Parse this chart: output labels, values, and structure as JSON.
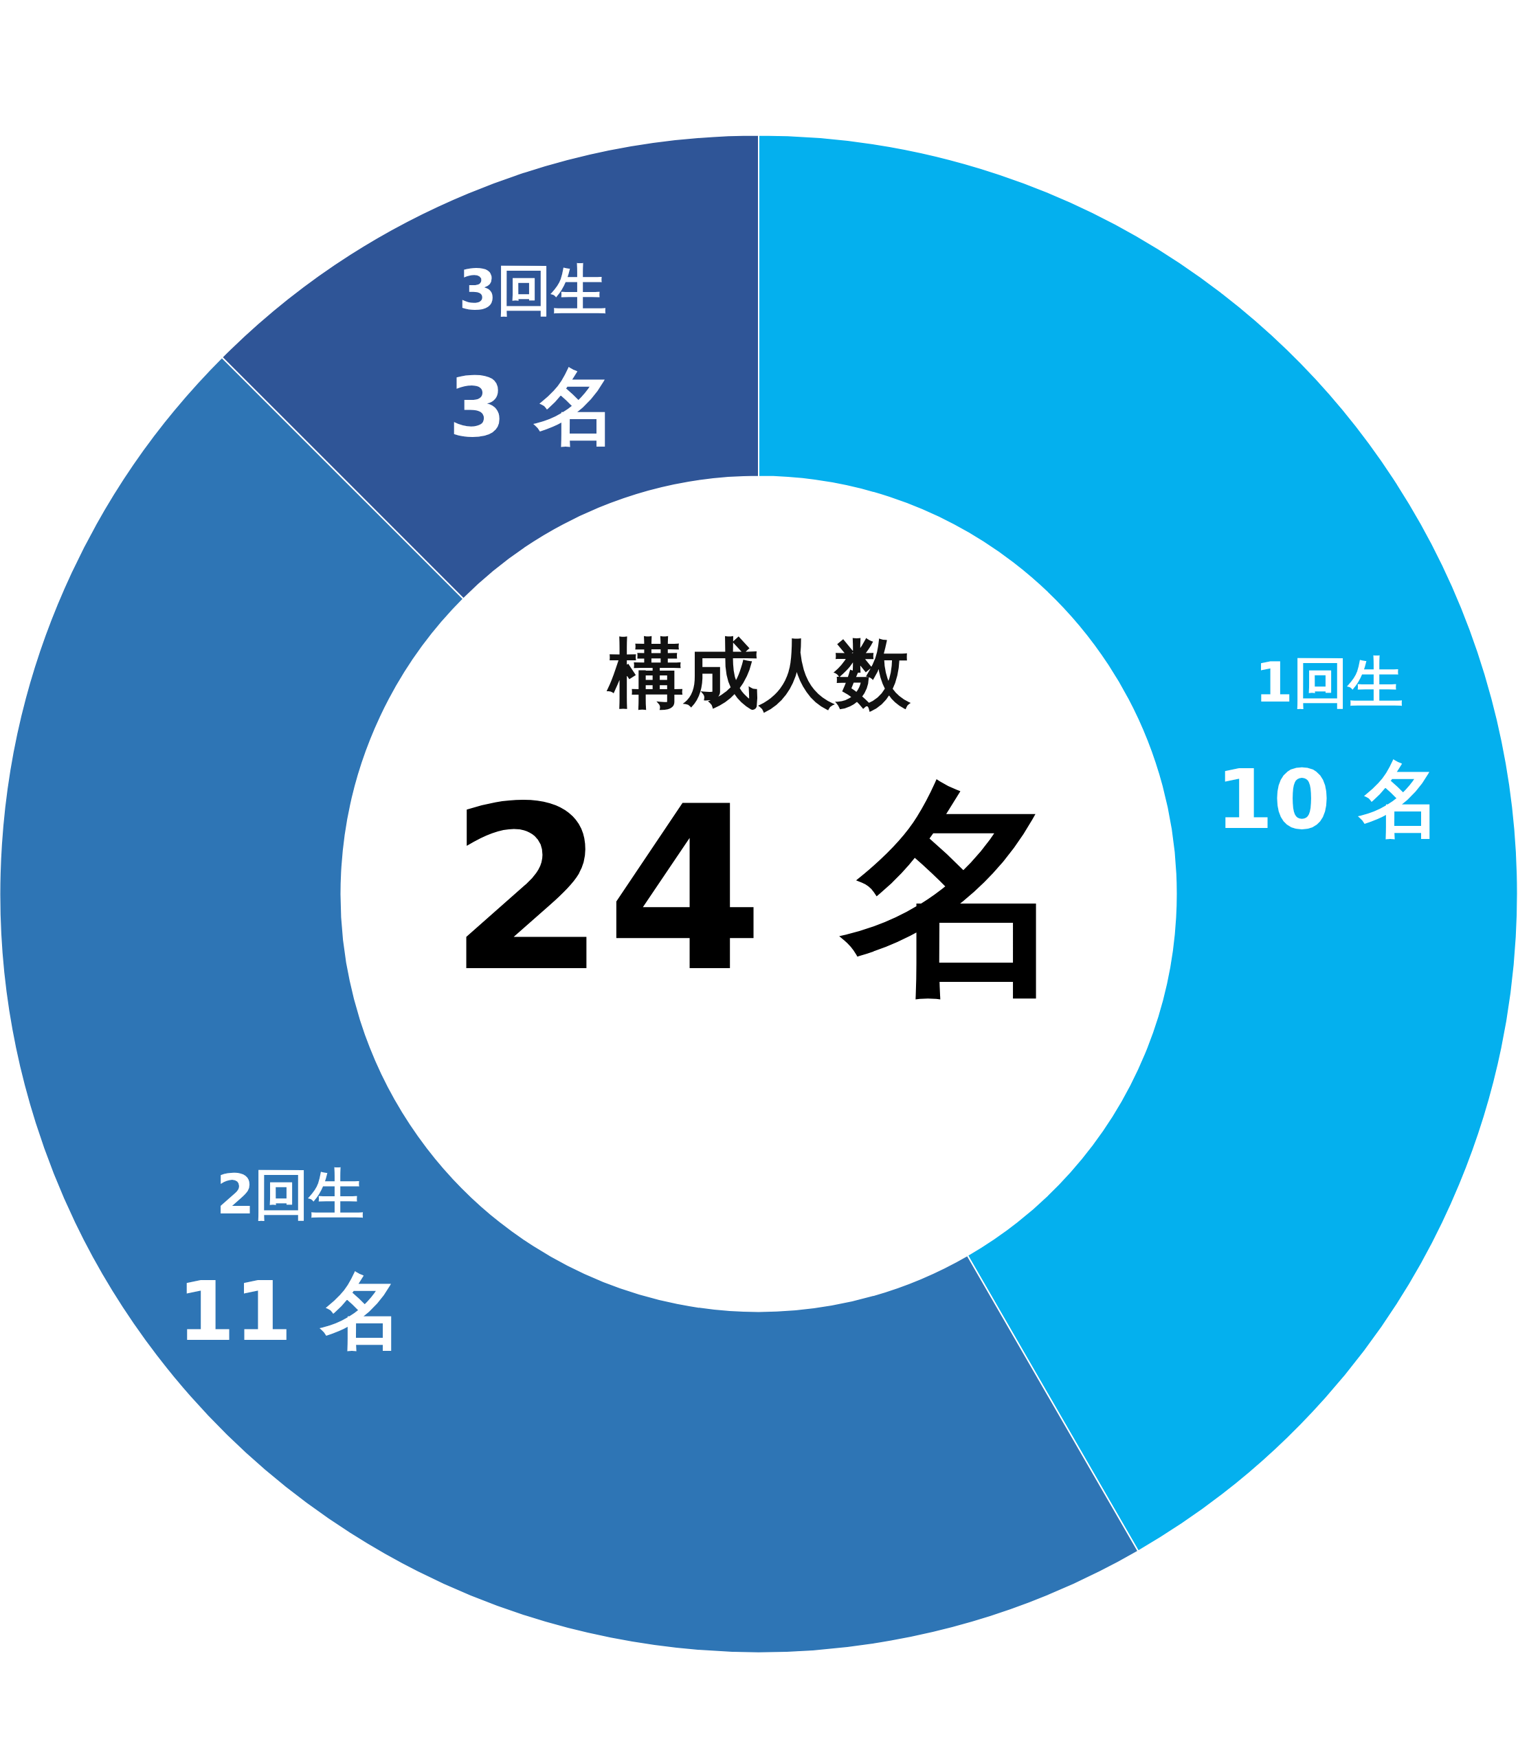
{
  "chart_data": {
    "type": "donut",
    "title": "構成人数",
    "annotations": [
      "24 名"
    ],
    "categories": [
      "1回生",
      "2回生",
      "3回生"
    ],
    "values": [
      10,
      11,
      3
    ],
    "value_labels": [
      "10 名",
      "11 名",
      "3 名"
    ],
    "colors": [
      "#04b0ee",
      "#2e75b5",
      "#2f5597"
    ],
    "legend": false
  }
}
